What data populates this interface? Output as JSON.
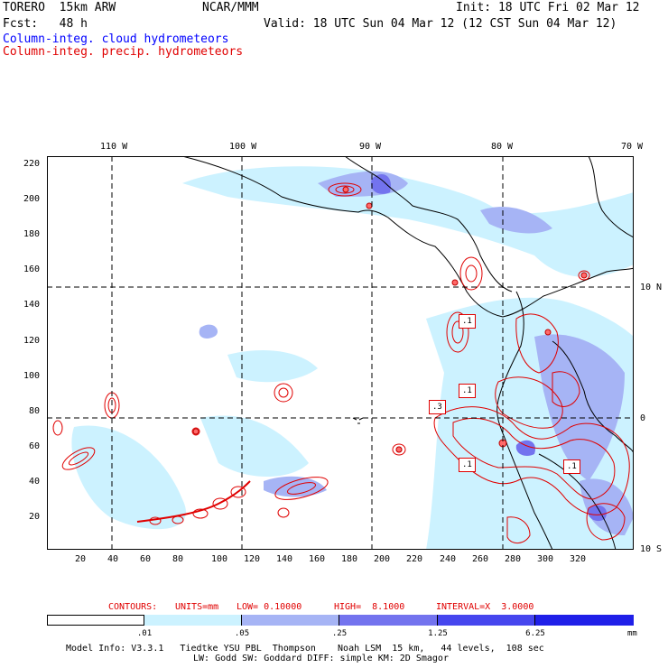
{
  "header": {
    "model": "TORERO  15km ARW",
    "center": "NCAR/MMM",
    "init": "Init: 18 UTC Fri 02 Mar 12",
    "fcst": "Fcst:   48 h",
    "valid": "Valid: 18 UTC Sun 04 Mar 12 (12 CST Sun 04 Mar 12)",
    "field1": "Column-integ. cloud hydrometeors",
    "field2": "Column-integ. precip. hydrometeors"
  },
  "colors": {
    "field1": "#0000ff",
    "field2": "#e00000"
  },
  "map": {
    "lon_labels": [
      "110 W",
      "100 W",
      "90 W",
      "80 W",
      "70 W"
    ],
    "lat_labels": [
      "10 N",
      "0",
      "10 S"
    ],
    "y_ticks": [
      "220",
      "200",
      "180",
      "160",
      "140",
      "120",
      "100",
      "80",
      "60",
      "40",
      "20"
    ],
    "x_ticks": [
      "20",
      "40",
      "60",
      "80",
      "100",
      "120",
      "140",
      "160",
      "180",
      "200",
      "220",
      "240",
      "260",
      "280",
      "300",
      "320"
    ],
    "contour_labels": [
      ".1",
      ".1",
      ".3",
      ".1",
      ".1"
    ]
  },
  "contour_info": {
    "label": "CONTOURS:",
    "units": "UNITS=mm",
    "low": "LOW= 0.10000",
    "high": "HIGH=  8.1000",
    "interval": "INTERVAL=X  3.0000"
  },
  "legend": {
    "values": [
      ".01",
      ".05",
      ".25",
      "1.25",
      "6.25"
    ],
    "unit": "mm",
    "colors": [
      "#ffffff",
      "#ccf2ff",
      "#a6b4f5",
      "#7373ee",
      "#4646ee",
      "#1f1fe8"
    ]
  },
  "footer": {
    "line1": "Model Info: V3.3.1   Tiedtke YSU PBL  Thompson    Noah LSM  15 km,   44 levels,  108 sec",
    "line2": "LW: Godd SW: Goddard DIFF: simple KM: 2D Smagor"
  }
}
